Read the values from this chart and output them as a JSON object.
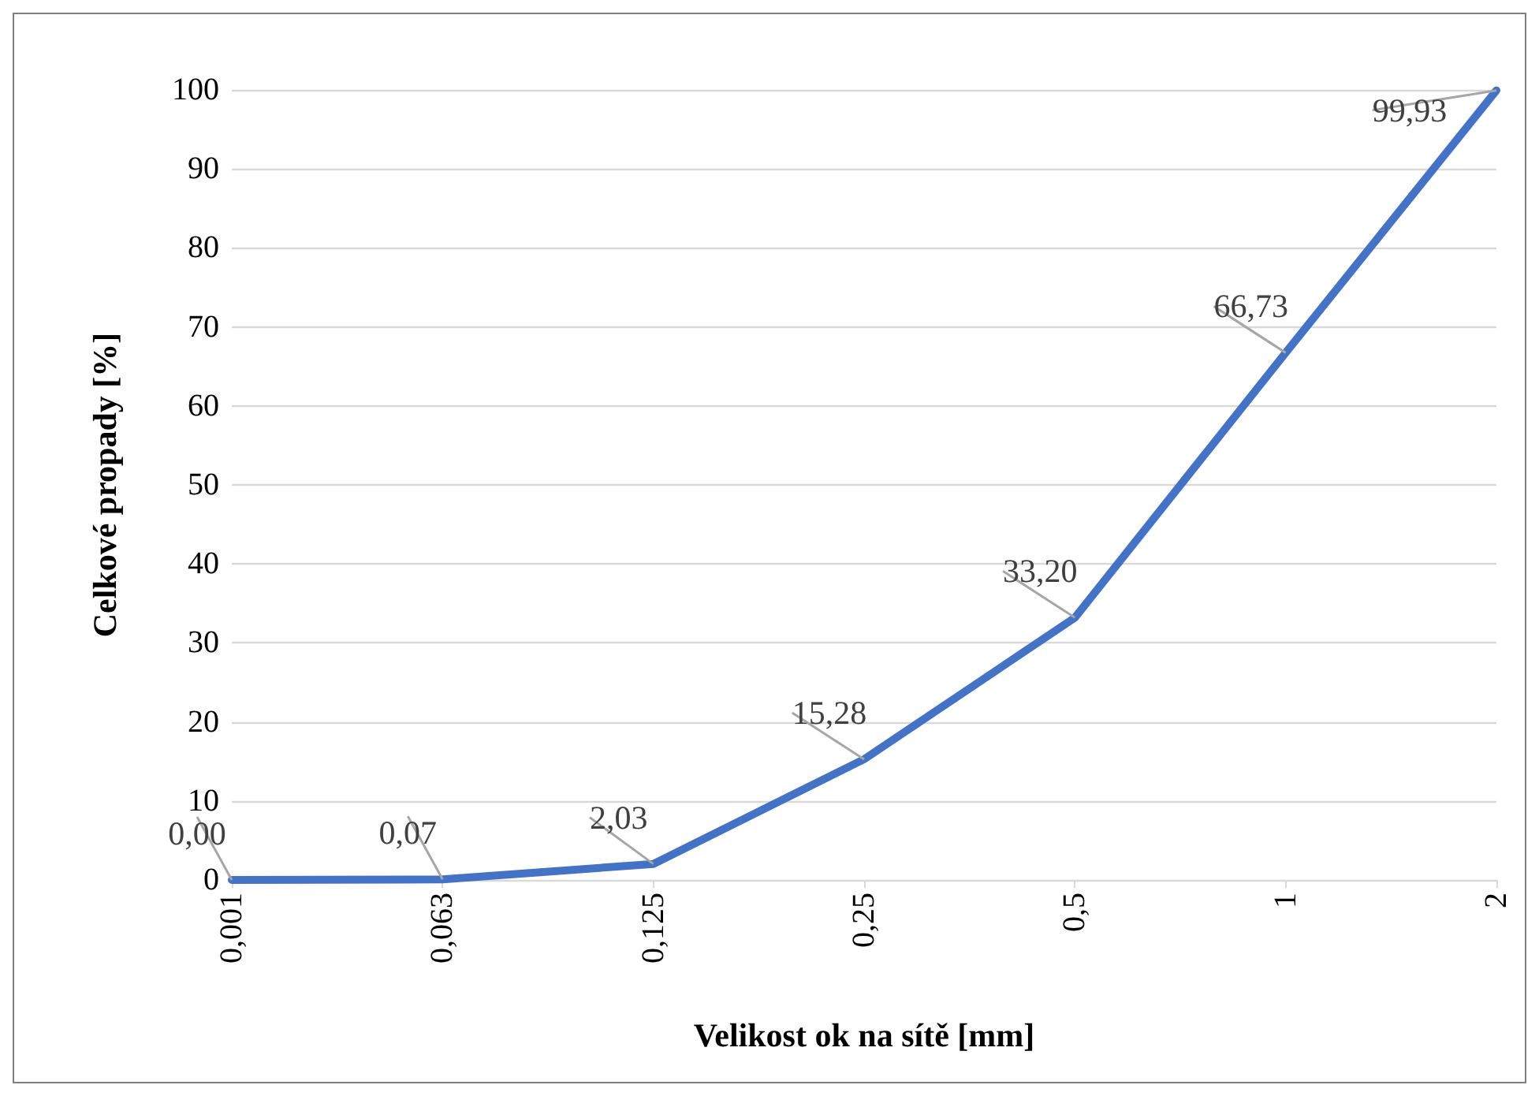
{
  "chart_data": {
    "type": "line",
    "xlabel": "Velikost ok na sítě [mm]",
    "ylabel": "Celkové propady [%]",
    "categories": [
      "0,001",
      "0,063",
      "0,125",
      "0,25",
      "0,5",
      "1",
      "2"
    ],
    "series": [
      {
        "color": "#4472c4",
        "values": [
          0.0,
          0.07,
          2.03,
          15.28,
          33.2,
          66.73,
          99.93
        ],
        "value_labels": [
          "0,00",
          "0,07",
          "2,03",
          "15,28",
          "33,20",
          "66,73",
          "99,93"
        ]
      }
    ],
    "ylim": [
      0,
      100
    ],
    "yticks": [
      0,
      10,
      20,
      30,
      40,
      50,
      60,
      70,
      80,
      90,
      100
    ],
    "grid": "y",
    "marker": "none",
    "line_style": "solid"
  }
}
